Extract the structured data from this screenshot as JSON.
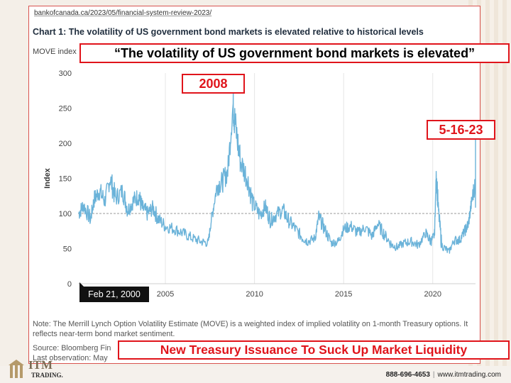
{
  "page": {
    "url": "bankofcanada.ca/2023/05/financial-system-review-2023/",
    "callout_quote": "“The volatility of US government bond markets is elevated”",
    "callout_2008": "2008",
    "callout_date": "5-16-23",
    "callout_bottom": "New Treasury Issuance To Suck Up Market Liquidity",
    "tooltip": "Feb 21, 2000",
    "note": "Note: The Merrill Lynch Option Volatility Estimate (MOVE) is a weighted index of implied volatility on 1-month Treasury options. It reflects near-term bond market sentiment.",
    "source": "Source: Bloomberg Fin",
    "last_obs": "Last observation: May",
    "footer_phone": "888-696-4653",
    "footer_site": "www.itmtrading.com",
    "logo_text": "ITM",
    "logo_sub": "TRADING.",
    "colors": {
      "line": "#6bb3d9",
      "callout": "#e0141b",
      "grid": "#e6e6e6",
      "refline": "#9a9a9a"
    }
  },
  "chart_data": {
    "type": "line",
    "title": "Chart 1: The volatility of US government bond markets is elevated relative to historical levels",
    "subtitle": "MOVE index",
    "xlabel": "",
    "ylabel": "Index",
    "ylim": [
      0,
      300
    ],
    "xlim": [
      2000.1,
      2022.4
    ],
    "yticks": [
      0,
      50,
      100,
      150,
      200,
      250,
      300
    ],
    "xticks": [
      2005,
      2010,
      2015,
      2020
    ],
    "reference_line": 100,
    "grid": true,
    "series": [
      {
        "values_by_year": [
          [
            2000.14,
            100
          ],
          [
            2000.4,
            112
          ],
          [
            2000.8,
            92
          ],
          [
            2001.0,
            120
          ],
          [
            2001.3,
            132
          ],
          [
            2001.6,
            118
          ],
          [
            2001.9,
            150
          ],
          [
            2002.2,
            122
          ],
          [
            2002.6,
            132
          ],
          [
            2002.9,
            105
          ],
          [
            2003.2,
            118
          ],
          [
            2003.5,
            125
          ],
          [
            2003.7,
            108
          ],
          [
            2004.0,
            100
          ],
          [
            2004.3,
            108
          ],
          [
            2004.6,
            92
          ],
          [
            2005.0,
            82
          ],
          [
            2005.5,
            78
          ],
          [
            2006.0,
            72
          ],
          [
            2006.5,
            65
          ],
          [
            2007.0,
            60
          ],
          [
            2007.4,
            58
          ],
          [
            2007.6,
            95
          ],
          [
            2007.9,
            140
          ],
          [
            2008.2,
            145
          ],
          [
            2008.5,
            160
          ],
          [
            2008.8,
            255
          ],
          [
            2008.9,
            230
          ],
          [
            2009.2,
            175
          ],
          [
            2009.6,
            150
          ],
          [
            2009.9,
            115
          ],
          [
            2010.3,
            98
          ],
          [
            2010.6,
            110
          ],
          [
            2010.9,
            90
          ],
          [
            2011.2,
            98
          ],
          [
            2011.6,
            105
          ],
          [
            2011.9,
            90
          ],
          [
            2012.3,
            78
          ],
          [
            2012.7,
            65
          ],
          [
            2013.0,
            60
          ],
          [
            2013.4,
            65
          ],
          [
            2013.6,
            95
          ],
          [
            2013.9,
            80
          ],
          [
            2014.3,
            58
          ],
          [
            2014.7,
            60
          ],
          [
            2015.0,
            78
          ],
          [
            2015.4,
            82
          ],
          [
            2015.8,
            72
          ],
          [
            2016.2,
            80
          ],
          [
            2016.6,
            68
          ],
          [
            2016.9,
            85
          ],
          [
            2017.3,
            70
          ],
          [
            2017.7,
            55
          ],
          [
            2018.0,
            52
          ],
          [
            2018.4,
            58
          ],
          [
            2018.8,
            60
          ],
          [
            2019.2,
            55
          ],
          [
            2019.6,
            72
          ],
          [
            2019.9,
            60
          ],
          [
            2020.1,
            70
          ],
          [
            2020.2,
            160
          ],
          [
            2020.3,
            110
          ],
          [
            2020.5,
            55
          ],
          [
            2020.9,
            45
          ],
          [
            2021.2,
            62
          ],
          [
            2021.5,
            62
          ],
          [
            2021.8,
            75
          ],
          [
            2022.0,
            85
          ],
          [
            2022.2,
            120
          ],
          [
            2022.4,
            145
          ],
          [
            2022.6,
            120
          ],
          [
            2022.8,
            150
          ],
          [
            2023.0,
            120
          ],
          [
            2023.1,
            195
          ],
          [
            2023.2,
            140
          ],
          [
            2023.35,
            125
          ]
        ]
      }
    ]
  }
}
